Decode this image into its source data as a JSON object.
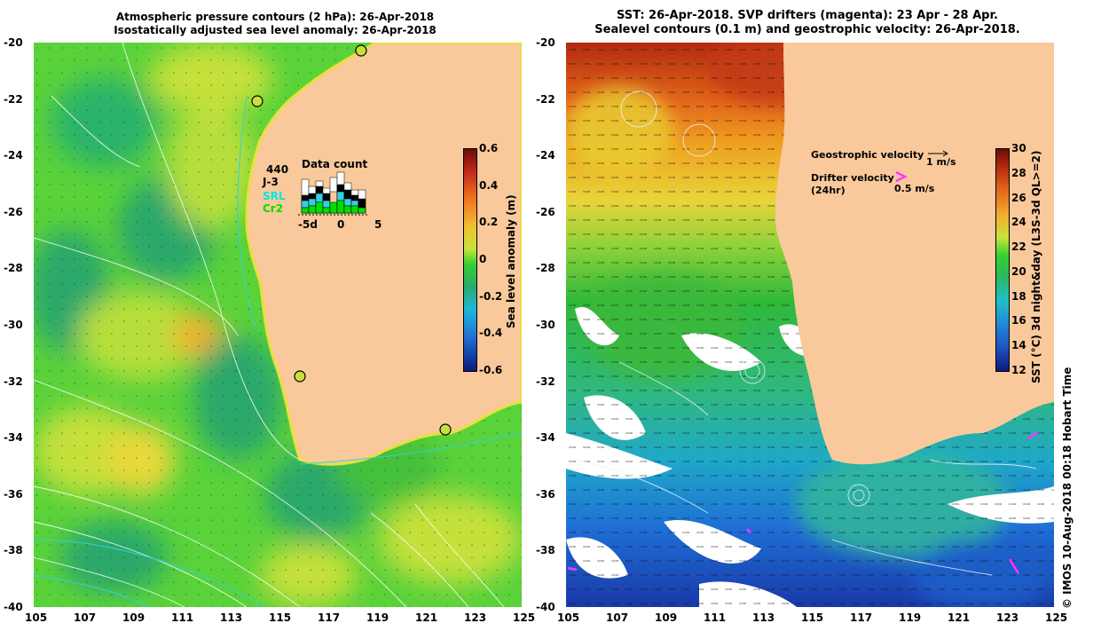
{
  "left_panel": {
    "title_line1": "Atmospheric pressure contours (2 hPa): 26-Apr-2018",
    "title_line2": "Isostatically adjusted sea level anomaly: 26-Apr-2018",
    "x_ticks": [
      "105",
      "107",
      "109",
      "111",
      "113",
      "115",
      "117",
      "119",
      "121",
      "123",
      "125"
    ],
    "y_ticks": [
      "-20",
      "-22",
      "-24",
      "-26",
      "-28",
      "-30",
      "-32",
      "-34",
      "-36",
      "-38",
      "-40"
    ],
    "colorbar": {
      "label": "Sea level anomaly (m)",
      "ticks": [
        "0.6",
        "0.4",
        "0.2",
        "0",
        "-0.2",
        "-0.4",
        "-0.6"
      ]
    },
    "data_count": {
      "title": "Data count",
      "satellites": [
        {
          "name": "440",
          "color": "#000000"
        },
        {
          "name": "J-3",
          "color": "#000000"
        },
        {
          "name": "SRL",
          "color": "#00e5e5"
        },
        {
          "name": "Cr2",
          "color": "#00e000"
        }
      ],
      "axis_ticks": [
        "-5d",
        "0",
        "5"
      ]
    }
  },
  "right_panel": {
    "title_line1": "SST: 26-Apr-2018. SVP drifters (magenta): 23 Apr - 28 Apr.",
    "title_line2": "Sealevel contours (0.1 m) and geostrophic velocity: 26-Apr-2018.",
    "x_ticks": [
      "105",
      "107",
      "109",
      "111",
      "113",
      "115",
      "117",
      "119",
      "121",
      "123",
      "125"
    ],
    "y_ticks": [
      "-20",
      "-22",
      "-24",
      "-26",
      "-28",
      "-30",
      "-32",
      "-34",
      "-36",
      "-38",
      "-40"
    ],
    "legend": {
      "geostrophic_label": "Geostrophic velocity",
      "geostrophic_scale": "1 m/s",
      "drifter_label": "Drifter velocity",
      "drifter_label2": "(24hr)",
      "drifter_scale": "0.5 m/s"
    },
    "colorbar": {
      "label": "SST (°C) 3d night&day (L3S-3d QL>=2)",
      "ticks": [
        "30",
        "28",
        "26",
        "24",
        "22",
        "20",
        "18",
        "16",
        "14",
        "12"
      ]
    }
  },
  "footer": {
    "credit": "© IMOS 10-Aug-2018 00:18 Hobart Time"
  },
  "colors": {
    "land": "#f9c99b",
    "sla_green": "#33d633",
    "sla_yellow": "#cfe33a",
    "sst_red": "#b22a10",
    "sst_orange": "#f08a18",
    "sst_green": "#2fb83a",
    "sst_blue": "#1f8ed6",
    "drifter": "#ff33ff"
  }
}
